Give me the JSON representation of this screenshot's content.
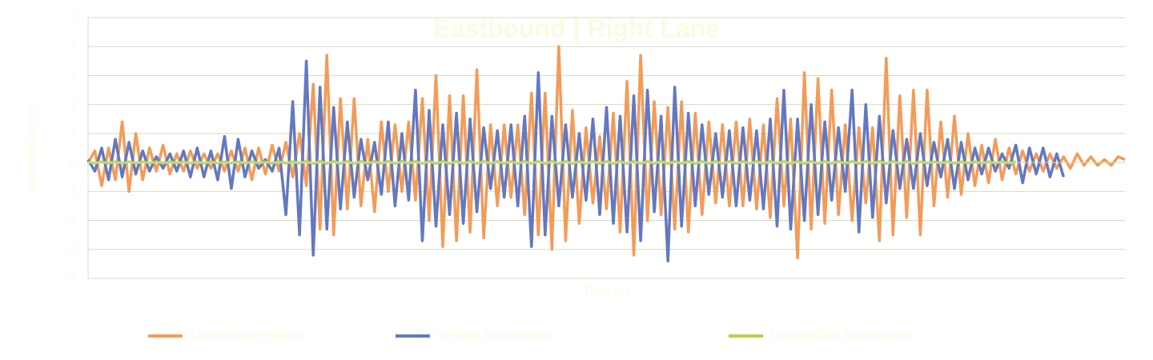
{
  "chart_data": {
    "type": "line",
    "title": "Eastbound | Right Lane",
    "x_label": "Time (s)",
    "y_label": "Acceleration (g)",
    "xlim": [
      2,
      40
    ],
    "xticks": [
      2,
      7,
      12,
      17,
      22,
      27,
      32,
      37
    ],
    "ylim": [
      -4,
      5
    ],
    "yticks": [
      -4,
      -3,
      -2,
      -1,
      0,
      1,
      2,
      3,
      4,
      5
    ],
    "grid": true,
    "legend": "bottom",
    "x": [
      2,
      2.25,
      2.5,
      2.75,
      3,
      3.25,
      3.5,
      3.75,
      4,
      4.25,
      4.5,
      4.75,
      5,
      5.25,
      5.5,
      5.75,
      6,
      6.25,
      6.5,
      6.75,
      7,
      7.25,
      7.5,
      7.75,
      8,
      8.25,
      8.5,
      8.75,
      9,
      9.25,
      9.5,
      9.75,
      10,
      10.25,
      10.5,
      10.75,
      11,
      11.25,
      11.5,
      11.75,
      12,
      12.25,
      12.5,
      12.75,
      13,
      13.25,
      13.5,
      13.75,
      14,
      14.25,
      14.5,
      14.75,
      15,
      15.25,
      15.5,
      15.75,
      16,
      16.25,
      16.5,
      16.75,
      17,
      17.25,
      17.5,
      17.75,
      18,
      18.25,
      18.5,
      18.75,
      19,
      19.25,
      19.5,
      19.75,
      20,
      20.25,
      20.5,
      20.75,
      21,
      21.25,
      21.5,
      21.75,
      22,
      22.25,
      22.5,
      22.75,
      23,
      23.25,
      23.5,
      23.75,
      24,
      24.25,
      24.5,
      24.75,
      25,
      25.25,
      25.5,
      25.75,
      26,
      26.25,
      26.5,
      26.75,
      27,
      27.25,
      27.5,
      27.75,
      28,
      28.25,
      28.5,
      28.75,
      29,
      29.25,
      29.5,
      29.75,
      30,
      30.25,
      30.5,
      30.75,
      31,
      31.25,
      31.5,
      31.75,
      32,
      32.25,
      32.5,
      32.75,
      33,
      33.25,
      33.5,
      33.75,
      34,
      34.25,
      34.5,
      34.75,
      35,
      35.25,
      35.5,
      35.75,
      36,
      36.25,
      36.5,
      36.75,
      37,
      37.25,
      37.5,
      37.75,
      38,
      38.25,
      38.5,
      38.75,
      39,
      39.25,
      39.5,
      39.75,
      40
    ],
    "series": [
      {
        "name": "Lateral Acceleration",
        "color": "#f39c59",
        "values": [
          0,
          0.4,
          -0.8,
          0.5,
          -0.6,
          1.4,
          -1.0,
          1.0,
          -0.6,
          0.5,
          -0.3,
          0.6,
          -0.4,
          0.3,
          -0.3,
          0.4,
          -0.2,
          0.3,
          -0.2,
          0.3,
          -0.3,
          0.4,
          -0.3,
          0.5,
          -0.6,
          0.5,
          -0.4,
          0.6,
          -0.3,
          0.7,
          -0.5,
          1.0,
          -0.8,
          2.7,
          -2.3,
          3.7,
          -2.5,
          2.2,
          -1.6,
          2.2,
          -1.5,
          0.8,
          -1.7,
          1.4,
          -1.0,
          1.3,
          -1.0,
          1.4,
          -1.3,
          2.2,
          -2.0,
          3.0,
          -2.9,
          2.3,
          -2.7,
          2.3,
          -2.4,
          3.2,
          -2.6,
          1.3,
          -1.5,
          1.3,
          -1.2,
          1.3,
          -1.8,
          2.4,
          -2.5,
          2.4,
          -3.0,
          4.0,
          -2.7,
          1.8,
          -2.1,
          1.2,
          -1.4,
          0.9,
          -1.6,
          1.7,
          -2.4,
          2.8,
          -3.2,
          3.7,
          -2.0,
          2.1,
          -1.8,
          1.9,
          -2.3,
          2.1,
          -2.4,
          1.7,
          -1.8,
          1.4,
          -1.4,
          1.3,
          -1.5,
          1.4,
          -1.5,
          1.5,
          -1.6,
          1.3,
          -1.9,
          2.2,
          -1.5,
          1.5,
          -3.3,
          3.1,
          -2.3,
          2.9,
          -2.1,
          2.5,
          -1.8,
          1.3,
          -2.0,
          1.2,
          -1.4,
          1.2,
          -2.7,
          3.6,
          -2.5,
          2.3,
          -1.9,
          2.5,
          -2.5,
          2.5,
          -1.5,
          1.4,
          -1.2,
          1.6,
          -1.1,
          1.0,
          -0.8,
          0.6,
          -0.7,
          0.8,
          -0.6,
          0.5,
          -0.4,
          0.4,
          -0.3,
          0.3,
          -0.3,
          0.3,
          -0.2,
          0.2,
          -0.2,
          0.3,
          -0.1,
          0.2,
          -0.1,
          0.1,
          -0.1,
          0.2,
          0.1
        ]
      },
      {
        "name": "Vertical Acceleration",
        "color": "#6478c0",
        "values": [
          0.1,
          -0.3,
          0.5,
          -0.6,
          0.8,
          -0.5,
          0.7,
          -0.4,
          0.4,
          -0.3,
          0.2,
          -0.2,
          0.3,
          -0.3,
          0.4,
          -0.5,
          0.5,
          -0.5,
          0.4,
          -0.6,
          0.9,
          -0.9,
          0.8,
          -0.5,
          0.4,
          -0.2,
          0.1,
          -0.3,
          0.5,
          -1.8,
          2.1,
          -2.5,
          3.5,
          -3.2,
          2.6,
          -2.3,
          1.9,
          -1.6,
          1.4,
          -1.2,
          0.8,
          -0.6,
          0.7,
          -1.1,
          1.4,
          -1.5,
          1.0,
          -1.3,
          2.5,
          -2.7,
          1.8,
          -2.2,
          1.3,
          -1.8,
          1.7,
          -2.1,
          1.5,
          -1.7,
          1.2,
          -0.9,
          1.1,
          -1.2,
          1.3,
          -1.5,
          1.6,
          -2.9,
          3.1,
          -2.5,
          1.6,
          -1.5,
          1.3,
          -1.2,
          1.0,
          -1.3,
          1.5,
          -1.8,
          1.9,
          -2.1,
          1.6,
          -2.4,
          2.3,
          -2.7,
          2.5,
          -1.7,
          1.6,
          -3.4,
          2.6,
          -2.2,
          1.7,
          -1.5,
          1.3,
          -1.1,
          1.0,
          -1.2,
          1.1,
          -1.5,
          1.2,
          -1.3,
          1.1,
          -1.6,
          1.5,
          -2.2,
          2.5,
          -2.3,
          1.5,
          -2.0,
          2.0,
          -1.8,
          1.4,
          -1.3,
          1.2,
          -1.0,
          2.5,
          -2.4,
          2.0,
          -1.9,
          1.6,
          -1.4,
          1.1,
          -0.9,
          0.8,
          -0.9,
          1.0,
          -0.8,
          0.7,
          -0.5,
          0.8,
          -0.9,
          0.7,
          -0.6,
          0.5,
          -0.4,
          0.5,
          -0.3,
          0.3,
          -0.2,
          0.6,
          -0.7,
          0.5,
          -0.4,
          0.5,
          -0.5,
          0.3,
          -0.5,
          null,
          null,
          null,
          null,
          null,
          null,
          null,
          null,
          null
        ]
      },
      {
        "name": "Longitudinal Acceleration",
        "color": "#b5d34a",
        "values": [
          0.02,
          -0.02,
          0.02,
          -0.02,
          0.02,
          -0.02,
          0.02,
          -0.02,
          0.02,
          -0.02,
          0.02,
          -0.02,
          0.02,
          -0.02,
          0.02,
          -0.02,
          0.02,
          -0.02,
          0.02,
          -0.02,
          0.02,
          -0.02,
          0.02,
          -0.02,
          0.02,
          -0.02,
          0.02,
          -0.02,
          0.02,
          -0.02,
          0.02,
          -0.02,
          0.03,
          -0.03,
          0.03,
          -0.03,
          0.03,
          -0.03,
          0.03,
          -0.03,
          0.03,
          -0.03,
          0.03,
          -0.03,
          0.03,
          -0.03,
          0.03,
          -0.03,
          0.03,
          -0.03,
          0.03,
          -0.03,
          0.03,
          -0.03,
          0.03,
          -0.03,
          0.03,
          -0.03,
          0.03,
          -0.03,
          0.03,
          -0.03,
          0.03,
          -0.03,
          0.03,
          -0.03,
          0.03,
          -0.03,
          0.03,
          -0.03,
          0.03,
          -0.03,
          0.03,
          -0.03,
          0.03,
          -0.03,
          0.03,
          -0.03,
          0.03,
          -0.03,
          0.03,
          -0.03,
          0.03,
          -0.03,
          0.03,
          -0.03,
          0.03,
          -0.03,
          0.03,
          -0.03,
          0.03,
          -0.03,
          0.03,
          -0.03,
          0.03,
          -0.03,
          0.03,
          -0.03,
          0.03,
          -0.03,
          0.03,
          -0.03,
          0.03,
          -0.03,
          0.03,
          -0.03,
          0.03,
          -0.03,
          0.03,
          -0.03,
          0.03,
          -0.03,
          0.03,
          -0.03,
          0.03,
          -0.03,
          0.03,
          -0.03,
          0.03,
          -0.03,
          0.03,
          -0.03,
          0.02,
          -0.02,
          0.02,
          -0.02,
          0.02,
          -0.02,
          0.02,
          -0.02,
          0.02,
          -0.02,
          0.02,
          -0.02,
          0.02,
          -0.02,
          0.02,
          null,
          null,
          null,
          null,
          null,
          null,
          null,
          null,
          null,
          null,
          null,
          null,
          null,
          null,
          null,
          null
        ]
      }
    ]
  }
}
